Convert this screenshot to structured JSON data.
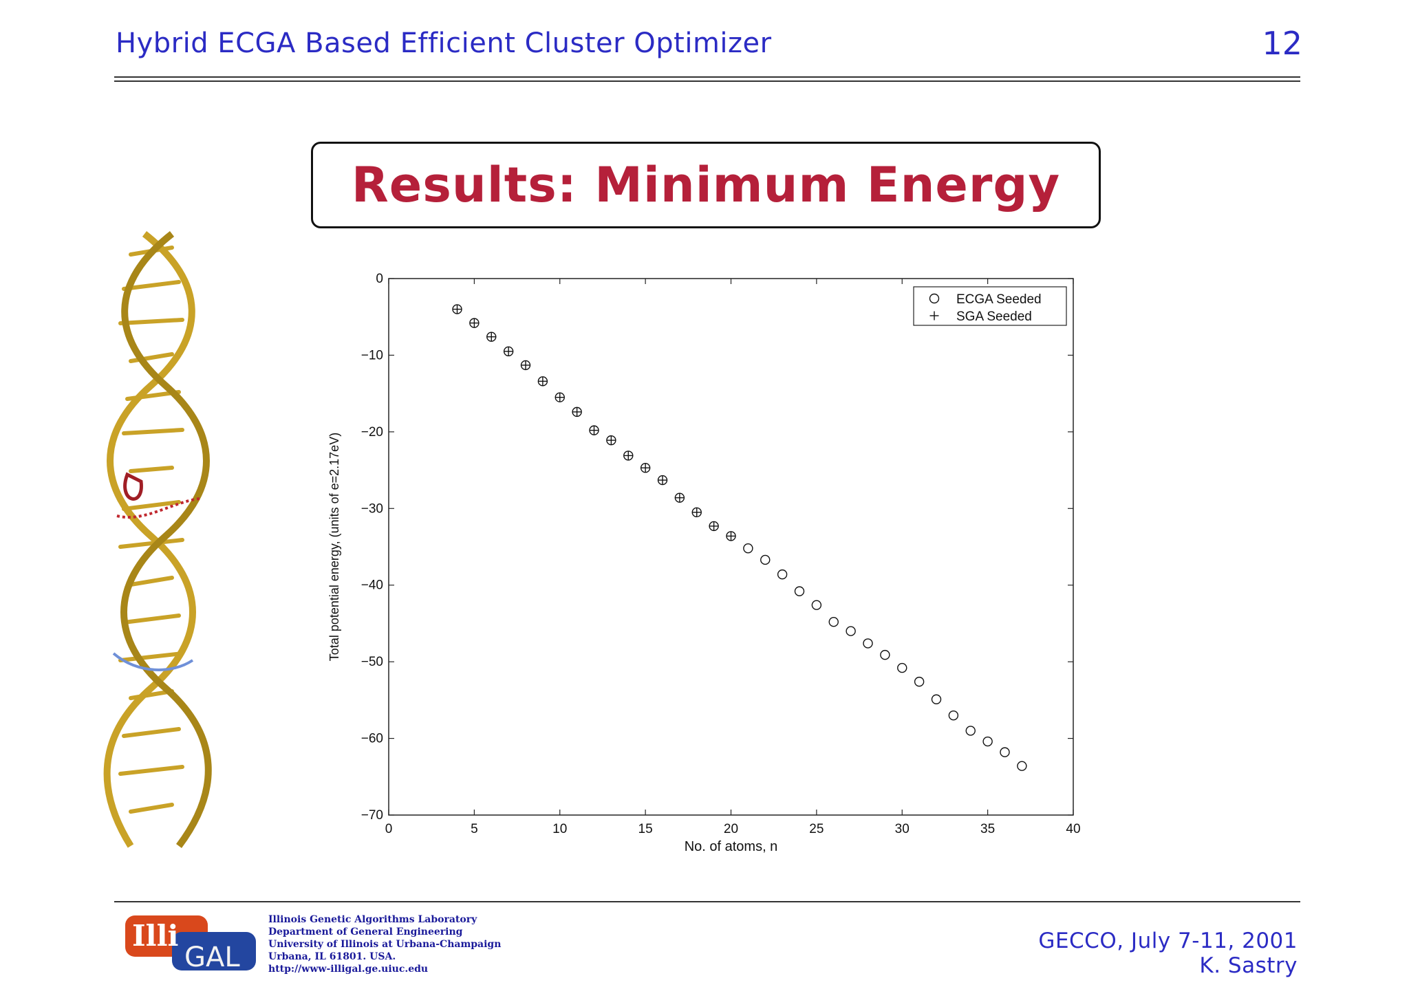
{
  "header": {
    "title": "Hybrid ECGA Based Efficient Cluster Optimizer",
    "page_number": "12"
  },
  "slide_title": "Results:  Minimum Energy",
  "chart_data": {
    "type": "scatter",
    "title": "",
    "xlabel": "No. of atoms, n",
    "ylabel": "Total potential energy, (units of e=2.17eV)",
    "xlim": [
      0,
      40
    ],
    "ylim": [
      -70,
      0
    ],
    "xticks": [
      0,
      5,
      10,
      15,
      20,
      25,
      30,
      35,
      40
    ],
    "yticks": [
      0,
      -10,
      -20,
      -30,
      -40,
      -50,
      -60,
      -70
    ],
    "grid": false,
    "legend": "top-right",
    "series": [
      {
        "name": "ECGA Seeded",
        "marker": "circle",
        "x": [
          4,
          5,
          6,
          7,
          8,
          9,
          10,
          11,
          12,
          13,
          14,
          15,
          16,
          17,
          18,
          19,
          20,
          21,
          22,
          23,
          24,
          25,
          26,
          27,
          28,
          29,
          30,
          31,
          32,
          33,
          34,
          35,
          36,
          37
        ],
        "y": [
          -4.0,
          -5.8,
          -7.6,
          -9.5,
          -11.3,
          -13.4,
          -15.5,
          -17.4,
          -19.8,
          -21.1,
          -23.1,
          -24.7,
          -26.3,
          -28.6,
          -30.5,
          -32.3,
          -33.6,
          -35.2,
          -36.7,
          -38.6,
          -40.8,
          -42.6,
          -44.8,
          -46.0,
          -47.6,
          -49.1,
          -50.8,
          -52.6,
          -54.9,
          -57.0,
          -59.0,
          -60.4,
          -61.8,
          -63.6
        ]
      },
      {
        "name": "SGA Seeded",
        "marker": "plus",
        "x": [
          4,
          5,
          6,
          7,
          8,
          9,
          10,
          11,
          12,
          13,
          14,
          15,
          16,
          17,
          18,
          19,
          20
        ],
        "y": [
          -4.0,
          -5.8,
          -7.6,
          -9.5,
          -11.3,
          -13.4,
          -15.5,
          -17.4,
          -19.8,
          -21.1,
          -23.1,
          -24.7,
          -26.3,
          -28.6,
          -30.5,
          -32.3,
          -33.6
        ]
      }
    ]
  },
  "footer": {
    "logo_text_top": "Illi",
    "logo_text_bottom": "GAL",
    "lab_lines": [
      "Illinois Genetic Algorithms Laboratory",
      "Department of General Engineering",
      "University of Illinois at Urbana-Champaign",
      "Urbana, IL 61801. USA.",
      "http://www-illigal.ge.uiuc.edu"
    ],
    "conference": "GECCO,  July 7-11, 2001",
    "author": "K. Sastry"
  },
  "colors": {
    "header_blue": "#2b2bc4",
    "title_red": "#b5203a",
    "dna_gold": "#c9a227"
  }
}
